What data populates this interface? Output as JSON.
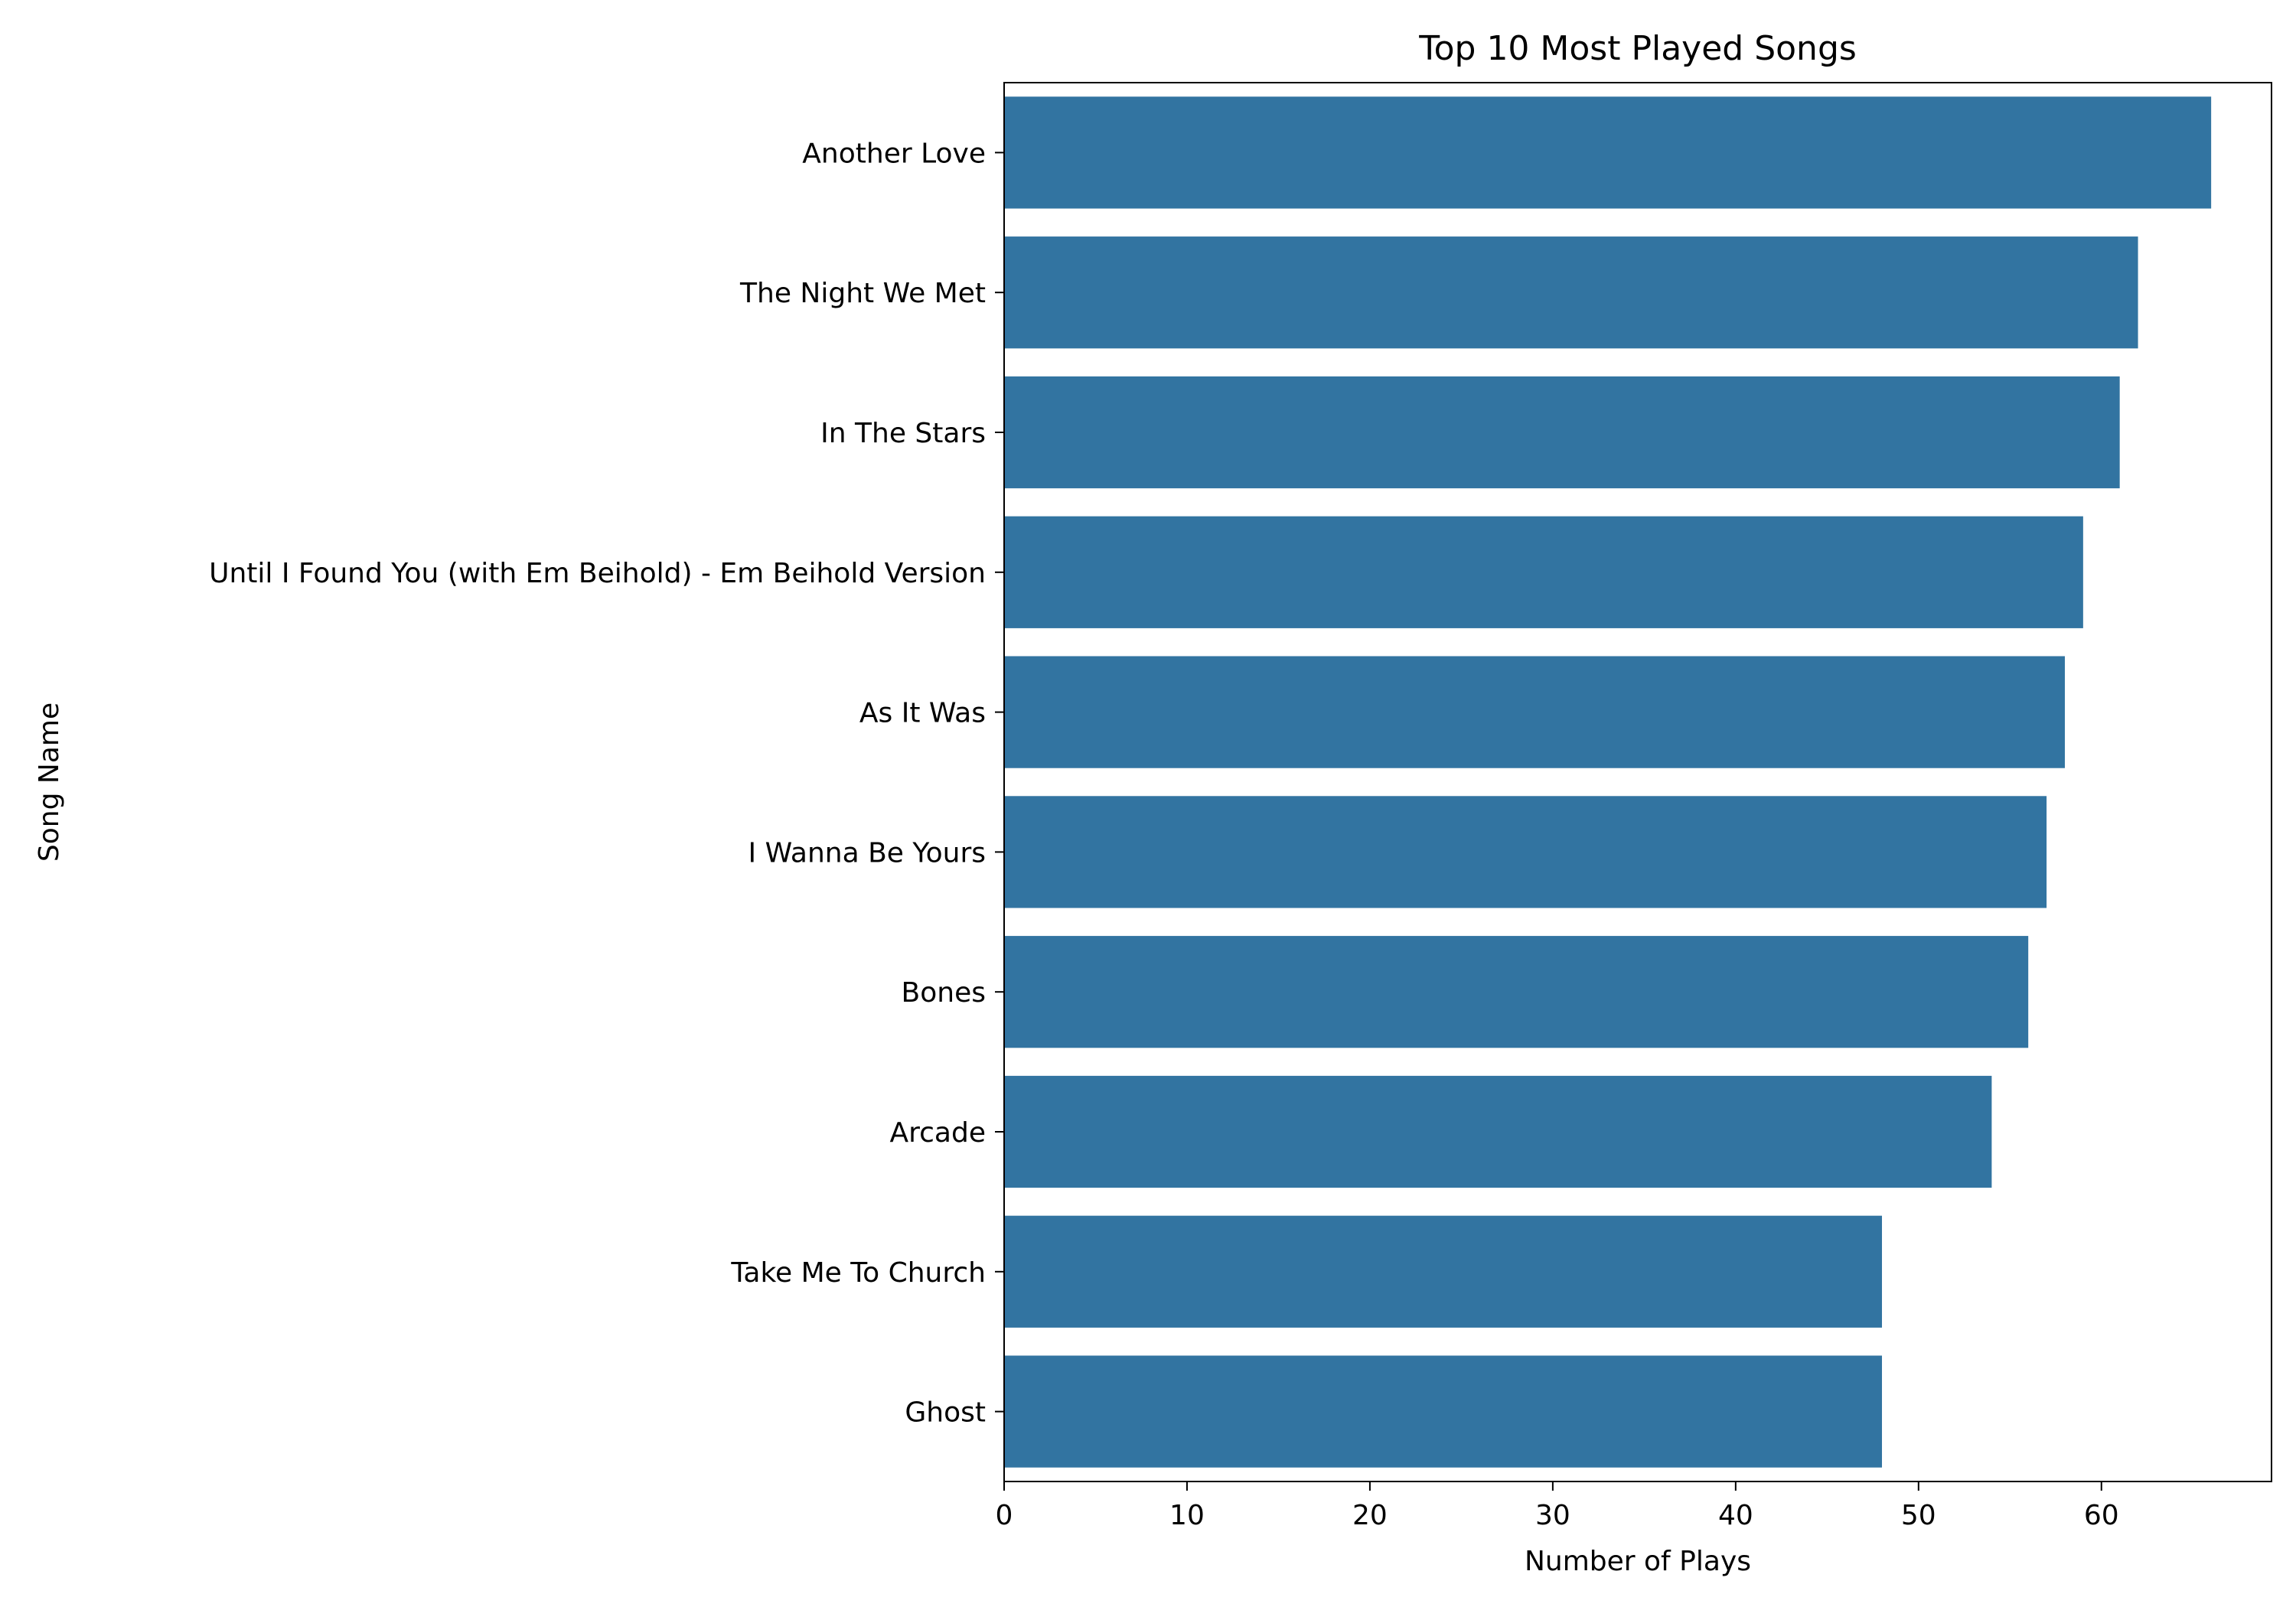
{
  "chart_data": {
    "type": "bar",
    "orientation": "horizontal",
    "title": "Top 10 Most Played Songs",
    "xlabel": "Number of Plays",
    "ylabel": "Song Name",
    "categories": [
      "Another Love",
      "The Night We Met",
      "In The Stars",
      "Until I Found You (with Em Beihold) - Em Beihold Version",
      "As It Was",
      "I Wanna Be Yours",
      "Bones",
      "Arcade",
      "Take Me To Church",
      "Ghost"
    ],
    "values": [
      66,
      62,
      61,
      59,
      58,
      57,
      56,
      54,
      48,
      48
    ],
    "xlim": [
      0,
      69.3
    ],
    "xticks": [
      0,
      10,
      20,
      30,
      40,
      50,
      60
    ],
    "grid": false,
    "colors": {
      "bar": "#3274a1",
      "axis": "#000000",
      "text": "#000000"
    }
  }
}
